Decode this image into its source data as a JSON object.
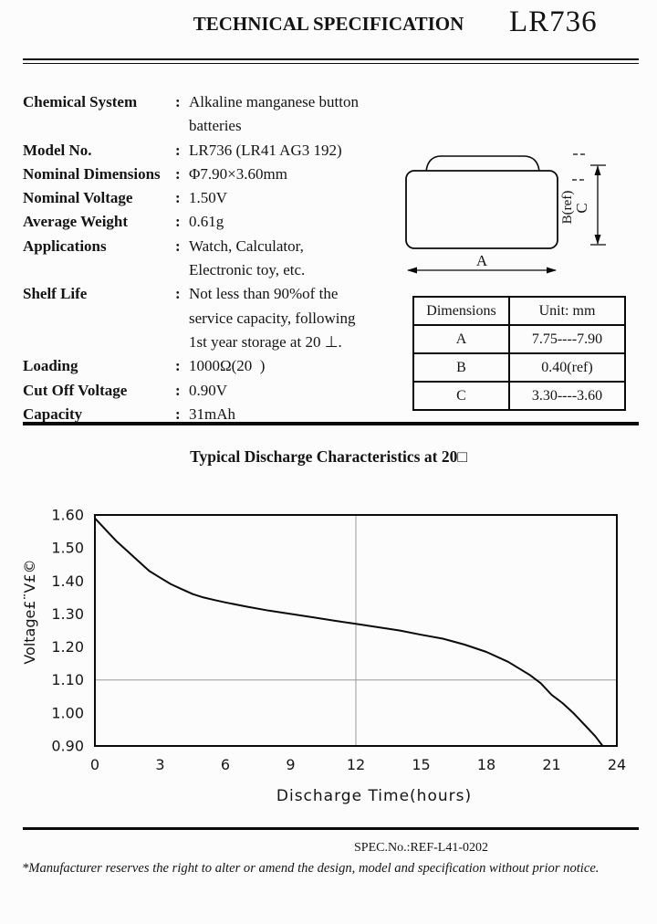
{
  "header": {
    "doc_title": "TECHNICAL SPECIFICATION",
    "model": "LR736"
  },
  "specs": {
    "colon": ":",
    "rows": [
      {
        "label": "Chemical System",
        "value": "Alkaline manganese button batteries"
      },
      {
        "label": "Model No.",
        "value": "LR736 (LR41 AG3 192)"
      },
      {
        "label": "Nominal Dimensions",
        "value": "Φ7.90×3.60mm"
      },
      {
        "label": "Nominal Voltage",
        "value": "1.50V"
      },
      {
        "label": "Average Weight",
        "value": "0.61g"
      },
      {
        "label": "Applications",
        "value": "Watch, Calculator,\nElectronic toy, etc."
      },
      {
        "label": "Shelf Life",
        "value": "Not less than 90%of the\nservice capacity, following\n1st year storage at 20 ⊥."
      },
      {
        "label": "Loading",
        "value": "1000Ω(20  )"
      },
      {
        "label": "Cut Off Voltage",
        "value": "0.90V"
      },
      {
        "label": "Capacity",
        "value": "31mAh"
      }
    ]
  },
  "diagram": {
    "label_a": "A",
    "label_b": "B(ref)",
    "label_c": "C"
  },
  "dim_table": {
    "headers": [
      "Dimensions",
      "Unit: mm"
    ],
    "rows": [
      [
        "A",
        "7.75----7.90"
      ],
      [
        "B",
        "0.40(ref)"
      ],
      [
        "C",
        "3.30----3.60"
      ]
    ]
  },
  "chart": {
    "title": "Typical Discharge Characteristics at 20□"
  },
  "chart_data": {
    "type": "line",
    "title": "Typical Discharge Characteristics at 20□",
    "xlabel": "Discharge Time(hours)",
    "ylabel": "Voltage£¨V£©",
    "xlim": [
      0,
      24
    ],
    "ylim": [
      0.9,
      1.6
    ],
    "xticks": [
      "0",
      "3",
      "6",
      "9",
      "12",
      "15",
      "18",
      "21",
      "24"
    ],
    "yticks": [
      "1.60",
      "1.50",
      "1.40",
      "1.30",
      "1.20",
      "1.10",
      "1.00",
      "0.90"
    ],
    "grid": "partial",
    "gridlines": {
      "x": [
        12
      ],
      "y": [
        1.1
      ]
    },
    "legend": "none",
    "series": [
      {
        "name": "discharge-curve",
        "points": [
          [
            0,
            1.59
          ],
          [
            0.5,
            1.555
          ],
          [
            1,
            1.52
          ],
          [
            1.5,
            1.49
          ],
          [
            2,
            1.46
          ],
          [
            2.5,
            1.43
          ],
          [
            3,
            1.41
          ],
          [
            3.5,
            1.39
          ],
          [
            4,
            1.375
          ],
          [
            4.5,
            1.36
          ],
          [
            5,
            1.35
          ],
          [
            5.5,
            1.342
          ],
          [
            6,
            1.335
          ],
          [
            7,
            1.322
          ],
          [
            8,
            1.31
          ],
          [
            9,
            1.3
          ],
          [
            10,
            1.29
          ],
          [
            11,
            1.28
          ],
          [
            12,
            1.27
          ],
          [
            13,
            1.26
          ],
          [
            14,
            1.25
          ],
          [
            15,
            1.237
          ],
          [
            16,
            1.225
          ],
          [
            17,
            1.207
          ],
          [
            18,
            1.185
          ],
          [
            19,
            1.155
          ],
          [
            20,
            1.115
          ],
          [
            20.5,
            1.09
          ],
          [
            21,
            1.055
          ],
          [
            21.5,
            1.03
          ],
          [
            22,
            1.0
          ],
          [
            22.5,
            0.965
          ],
          [
            23,
            0.93
          ],
          [
            23.35,
            0.9
          ]
        ]
      }
    ]
  },
  "footer": {
    "spec_no": "SPEC.No.:REF-L41-0202",
    "disclaimer": "*Manufacturer reserves the right to alter or amend the design, model and specification without prior notice."
  }
}
